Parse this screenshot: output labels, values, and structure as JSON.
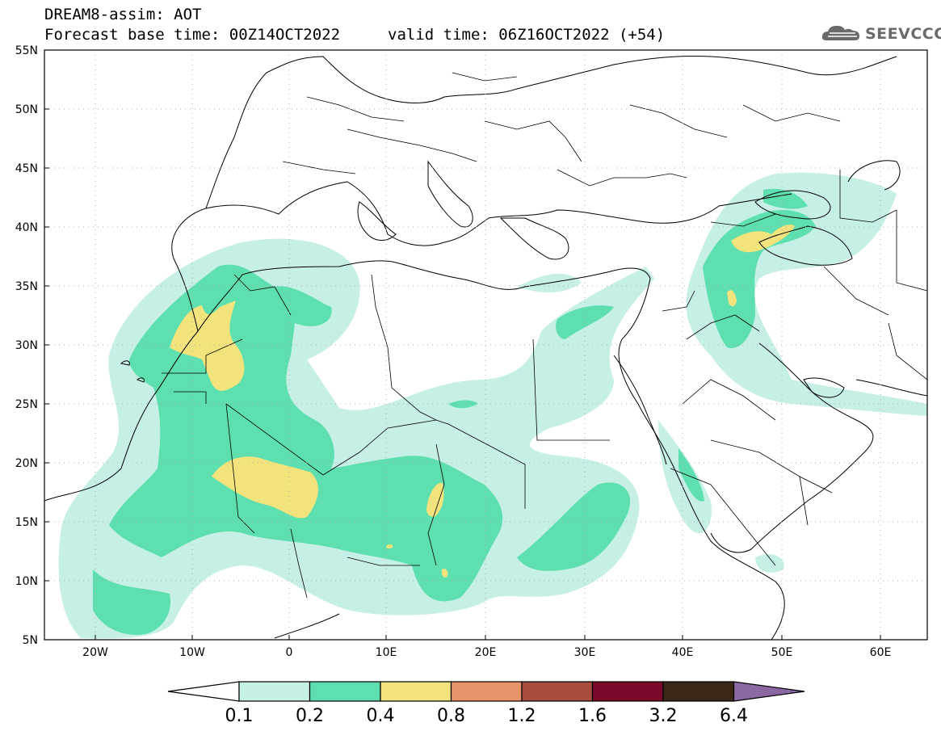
{
  "header": {
    "title": "DREAM8-assim: AOT",
    "base_time": "Forecast base time: 00Z14OCT2022",
    "valid_time": "valid time: 06Z16OCT2022 (+54)",
    "logo_text": "SEEVCCC"
  },
  "map": {
    "lat_labels": [
      "55N",
      "50N",
      "45N",
      "40N",
      "35N",
      "30N",
      "25N",
      "20N",
      "15N",
      "10N",
      "5N"
    ],
    "lon_labels": [
      "20W",
      "10W",
      "0",
      "10E",
      "20E",
      "30E",
      "40E",
      "50E",
      "60E"
    ],
    "lat_range": [
      5,
      55
    ],
    "lon_range": [
      -25,
      65
    ],
    "grid": true
  },
  "colorbar": {
    "levels": [
      "0.1",
      "0.2",
      "0.4",
      "0.8",
      "1.2",
      "1.6",
      "3.2",
      "6.4"
    ],
    "colors": [
      "#ffffff",
      "#c6f0e6",
      "#5ddfb0",
      "#f2e37c",
      "#e8946a",
      "#a84c3e",
      "#7a0a2a",
      "#3d2716",
      "#8b67a3"
    ]
  }
}
